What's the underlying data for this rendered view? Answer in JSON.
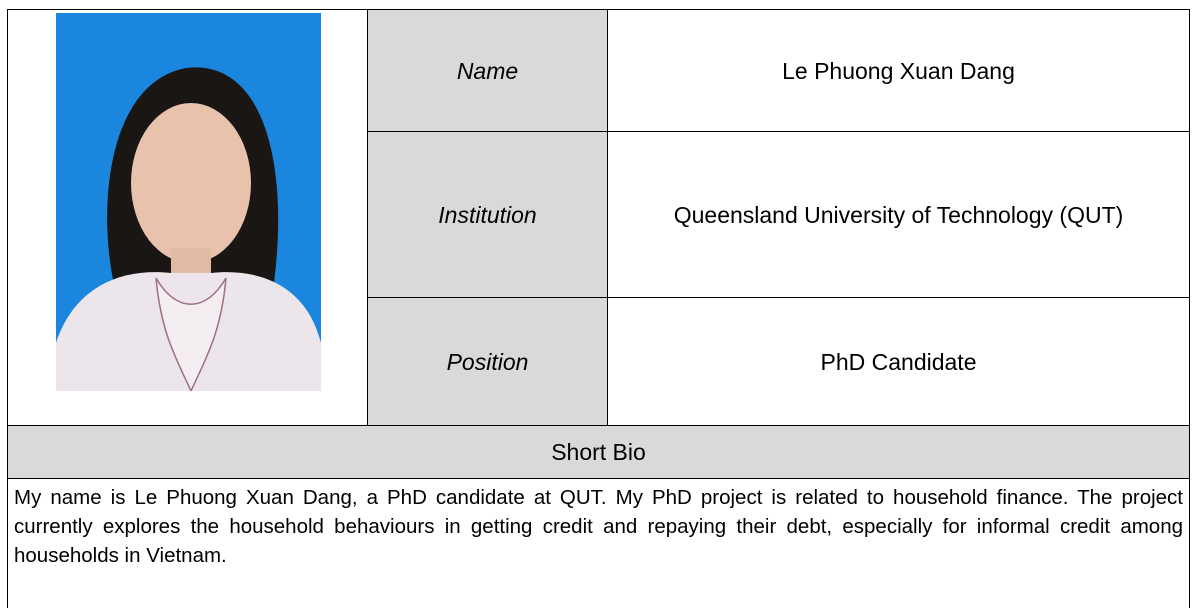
{
  "profile": {
    "rows": [
      {
        "label": "Name",
        "value": "Le Phuong Xuan Dang"
      },
      {
        "label": "Institution",
        "value": "Queensland University of Technology (QUT)"
      },
      {
        "label": "Position",
        "value": "PhD Candidate"
      }
    ],
    "bio_heading": "Short Bio",
    "bio": "My name is Le Phuong Xuan Dang, a PhD candidate at QUT.  My PhD project is related to household finance. The project currently explores the household behaviours in getting credit and repaying their debt, especially for informal credit among households in Vietnam."
  }
}
